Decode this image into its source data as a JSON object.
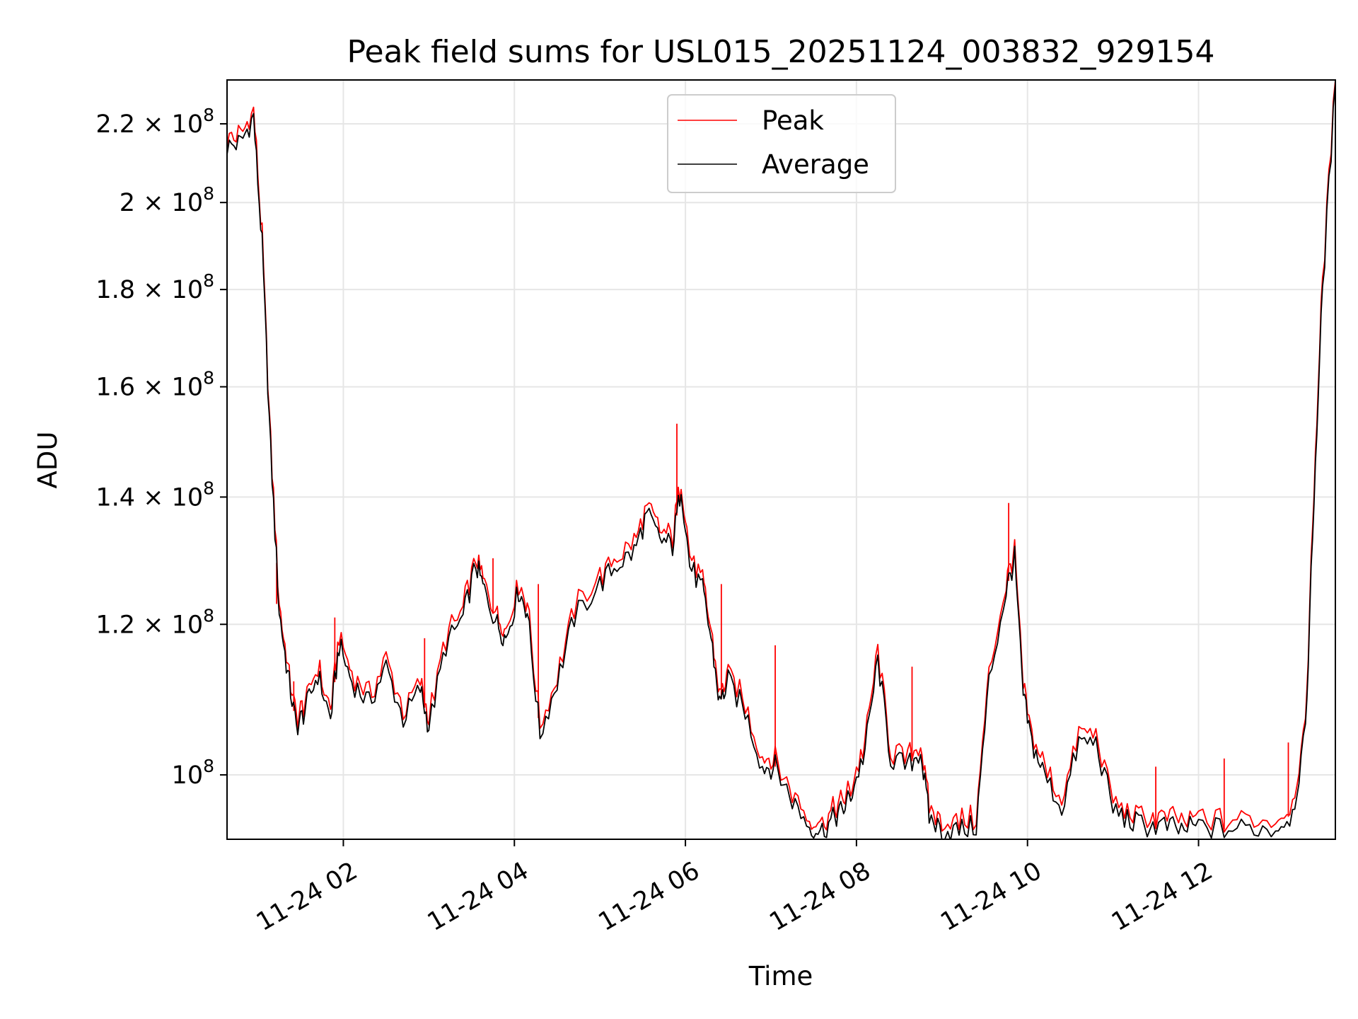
{
  "chart_data": {
    "type": "line",
    "title": "Peak field sums for USL015_20251124_003832_929154",
    "xlabel": "Time",
    "ylabel": "ADU",
    "xlim": [
      0.64,
      13.6
    ],
    "ylim": [
      92500000.0,
      232000000.0
    ],
    "yscale": "log",
    "grid": true,
    "legend_position": "upper center",
    "x_ticks": [
      {
        "value": 2,
        "label": "11-24 02"
      },
      {
        "value": 4,
        "label": "11-24 04"
      },
      {
        "value": 6,
        "label": "11-24 06"
      },
      {
        "value": 8,
        "label": "11-24 08"
      },
      {
        "value": 10,
        "label": "11-24 10"
      },
      {
        "value": 12,
        "label": "11-24 12"
      }
    ],
    "y_ticks": [
      {
        "value": 100000000,
        "base": "10",
        "exp": "8"
      },
      {
        "value": 120000000,
        "base": "1.2 × 10",
        "exp": "8"
      },
      {
        "value": 140000000,
        "base": "1.4 × 10",
        "exp": "8"
      },
      {
        "value": 160000000,
        "base": "1.6 × 10",
        "exp": "8"
      },
      {
        "value": 180000000,
        "base": "1.8 × 10",
        "exp": "8"
      },
      {
        "value": 200000000,
        "base": "2 × 10",
        "exp": "8"
      },
      {
        "value": 220000000,
        "base": "2.2 × 10",
        "exp": "8"
      }
    ],
    "series": [
      {
        "name": "Peak",
        "color": "#ff0000"
      },
      {
        "name": "Average",
        "color": "#000000"
      }
    ],
    "x_unit": "hours since 2025-11-24 00:00",
    "x": [
      0.64,
      0.8,
      0.95,
      1.05,
      1.15,
      1.25,
      1.35,
      1.45,
      1.55,
      1.7,
      1.85,
      1.95,
      2.1,
      2.3,
      2.5,
      2.7,
      2.9,
      3.0,
      3.2,
      3.4,
      3.55,
      3.65,
      3.8,
      3.9,
      4.05,
      4.15,
      4.3,
      4.5,
      4.7,
      5.0,
      5.2,
      5.4,
      5.55,
      5.7,
      5.85,
      5.95,
      6.05,
      6.2,
      6.3,
      6.4,
      6.5,
      6.7,
      6.9,
      7.05,
      7.25,
      7.45,
      7.6,
      7.75,
      7.85,
      7.95,
      8.1,
      8.25,
      8.4,
      8.6,
      8.75,
      8.85,
      9.0,
      9.2,
      9.4,
      9.55,
      9.75,
      9.85,
      9.95,
      10.05,
      10.2,
      10.4,
      10.6,
      10.8,
      11.0,
      11.2,
      11.4,
      11.6,
      11.8,
      12.0,
      12.3,
      12.6,
      12.9,
      13.1,
      13.25,
      13.35,
      13.45,
      13.6
    ],
    "average": [
      214000000,
      215000000,
      222000000,
      190000000,
      148000000,
      122000000,
      113000000,
      106000000,
      108000000,
      113000000,
      107000000,
      117000000,
      112000000,
      109000000,
      114000000,
      107000000,
      111000000,
      106000000,
      117000000,
      121000000,
      129000000,
      125000000,
      120000000,
      118000000,
      125000000,
      122000000,
      105000000,
      112000000,
      121000000,
      126000000,
      129000000,
      131000000,
      137000000,
      133000000,
      132000000,
      142000000,
      129000000,
      125000000,
      118000000,
      109000000,
      112000000,
      108000000,
      101000000,
      101000000,
      97000000,
      94000000,
      93500000,
      95000000,
      96000000,
      98000000,
      103000000,
      115000000,
      102000000,
      101000000,
      103000000,
      95000000,
      93500000,
      93500000,
      94000000,
      112000000,
      125000000,
      130000000,
      110000000,
      104000000,
      100000000,
      96000000,
      104000000,
      104000000,
      96000000,
      94500000,
      94000000,
      94000000,
      93500000,
      94000000,
      93600000,
      93800000,
      93700000,
      95500000,
      105000000,
      140000000,
      180000000,
      231000000
    ],
    "peak_spikes": [
      {
        "x": 1.22,
        "value": 123000000
      },
      {
        "x": 1.42,
        "value": 112000000
      },
      {
        "x": 1.9,
        "value": 121000000
      },
      {
        "x": 2.95,
        "value": 118000000
      },
      {
        "x": 3.75,
        "value": 130000000
      },
      {
        "x": 4.28,
        "value": 126000000
      },
      {
        "x": 5.9,
        "value": 153000000
      },
      {
        "x": 6.42,
        "value": 126000000
      },
      {
        "x": 7.05,
        "value": 117000000
      },
      {
        "x": 8.65,
        "value": 114000000
      },
      {
        "x": 9.78,
        "value": 139000000
      },
      {
        "x": 11.5,
        "value": 101000000
      },
      {
        "x": 12.3,
        "value": 102000000
      },
      {
        "x": 13.05,
        "value": 104000000
      }
    ]
  }
}
